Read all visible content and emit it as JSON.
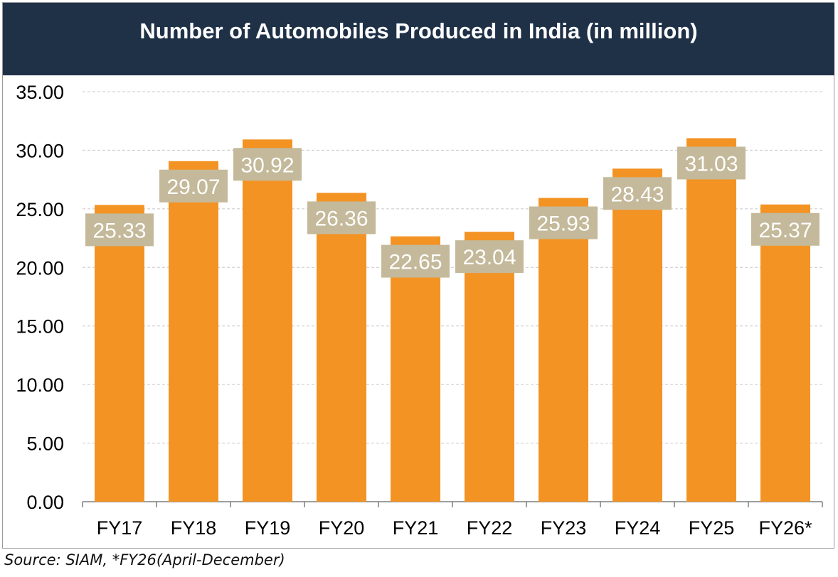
{
  "colors": {
    "title_bg": "#1f3147",
    "bar": "#f39324",
    "data_label_bg": "#c4b99a",
    "data_label_text": "#ffffff",
    "grid": "#c8c8c8"
  },
  "chart_data": {
    "type": "bar",
    "title": "Number of Automobiles Produced in India (in million)",
    "categories": [
      "FY17",
      "FY18",
      "FY19",
      "FY20",
      "FY21",
      "FY22",
      "FY23",
      "FY24",
      "FY25",
      "FY26*"
    ],
    "values": [
      25.33,
      29.07,
      30.92,
      26.36,
      22.65,
      23.04,
      25.93,
      28.43,
      31.03,
      25.37
    ],
    "data_labels": [
      "25.33",
      "29.07",
      "30.92",
      "26.36",
      "22.65",
      "23.04",
      "25.93",
      "28.43",
      "31.03",
      "25.37"
    ],
    "y_ticks": [
      "0.00",
      "5.00",
      "10.00",
      "15.00",
      "20.00",
      "25.00",
      "30.00",
      "35.00"
    ],
    "ylim": [
      0,
      35
    ],
    "xlabel": "",
    "ylabel": "",
    "grid": "horizontal-dashed",
    "legend": "none"
  },
  "footer": {
    "source": "Source: SIAM, *FY26(April-December)"
  }
}
